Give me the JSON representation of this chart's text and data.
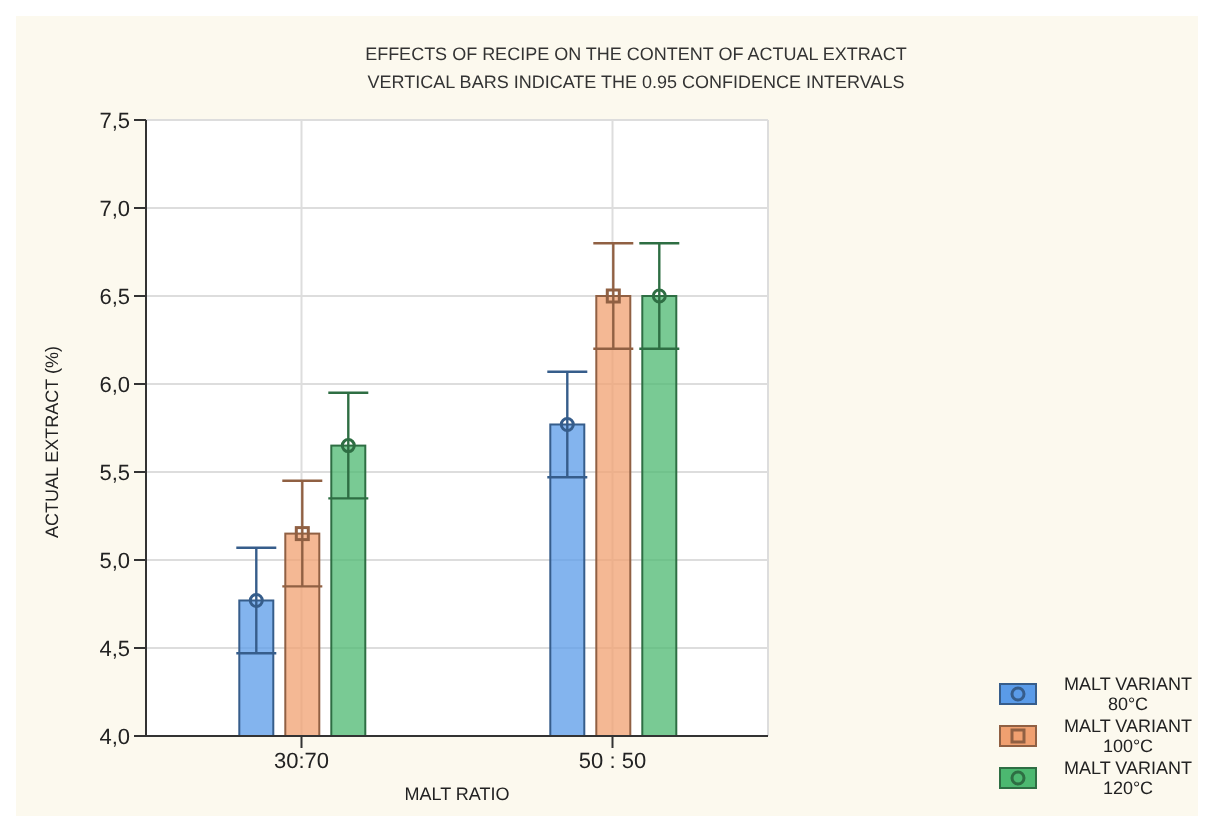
{
  "chart_data": {
    "type": "bar",
    "title": "EFFECTS OF RECIPE ON THE CONTENT OF ACTUAL EXTRACT",
    "subtitle": "VERTICAL BARS INDICATE THE 0.95 CONFIDENCE INTERVALS",
    "xlabel": "MALT RATIO",
    "ylabel": "ACTUAL EXTRACT (%)",
    "categories": [
      "30:70",
      "50 : 50"
    ],
    "series": [
      {
        "name": "MALT VARIANT 80°C",
        "color": "#5a9be8",
        "marker": "circle",
        "values": [
          4.77,
          5.77
        ],
        "errors": [
          0.3,
          0.3
        ]
      },
      {
        "name": "MALT VARIANT 100°C",
        "color": "#f0a070",
        "marker": "square",
        "values": [
          5.15,
          6.5
        ],
        "errors": [
          0.3,
          0.3
        ]
      },
      {
        "name": "MALT VARIANT 120°C",
        "color": "#4cb870",
        "marker": "circle",
        "values": [
          5.65,
          6.5
        ],
        "errors": [
          0.3,
          0.3
        ]
      }
    ],
    "ylim": [
      4.0,
      7.5
    ],
    "yticks": [
      {
        "value": 4.0,
        "label": "4,0"
      },
      {
        "value": 4.5,
        "label": "4,5"
      },
      {
        "value": 5.0,
        "label": "5,0"
      },
      {
        "value": 5.5,
        "label": "5,5"
      },
      {
        "value": 6.0,
        "label": "6,0"
      },
      {
        "value": 6.5,
        "label": "6,5"
      },
      {
        "value": 7.0,
        "label": "7,0"
      },
      {
        "value": 7.5,
        "label": "7,5"
      }
    ],
    "grid": true,
    "legend": "bottom right"
  }
}
